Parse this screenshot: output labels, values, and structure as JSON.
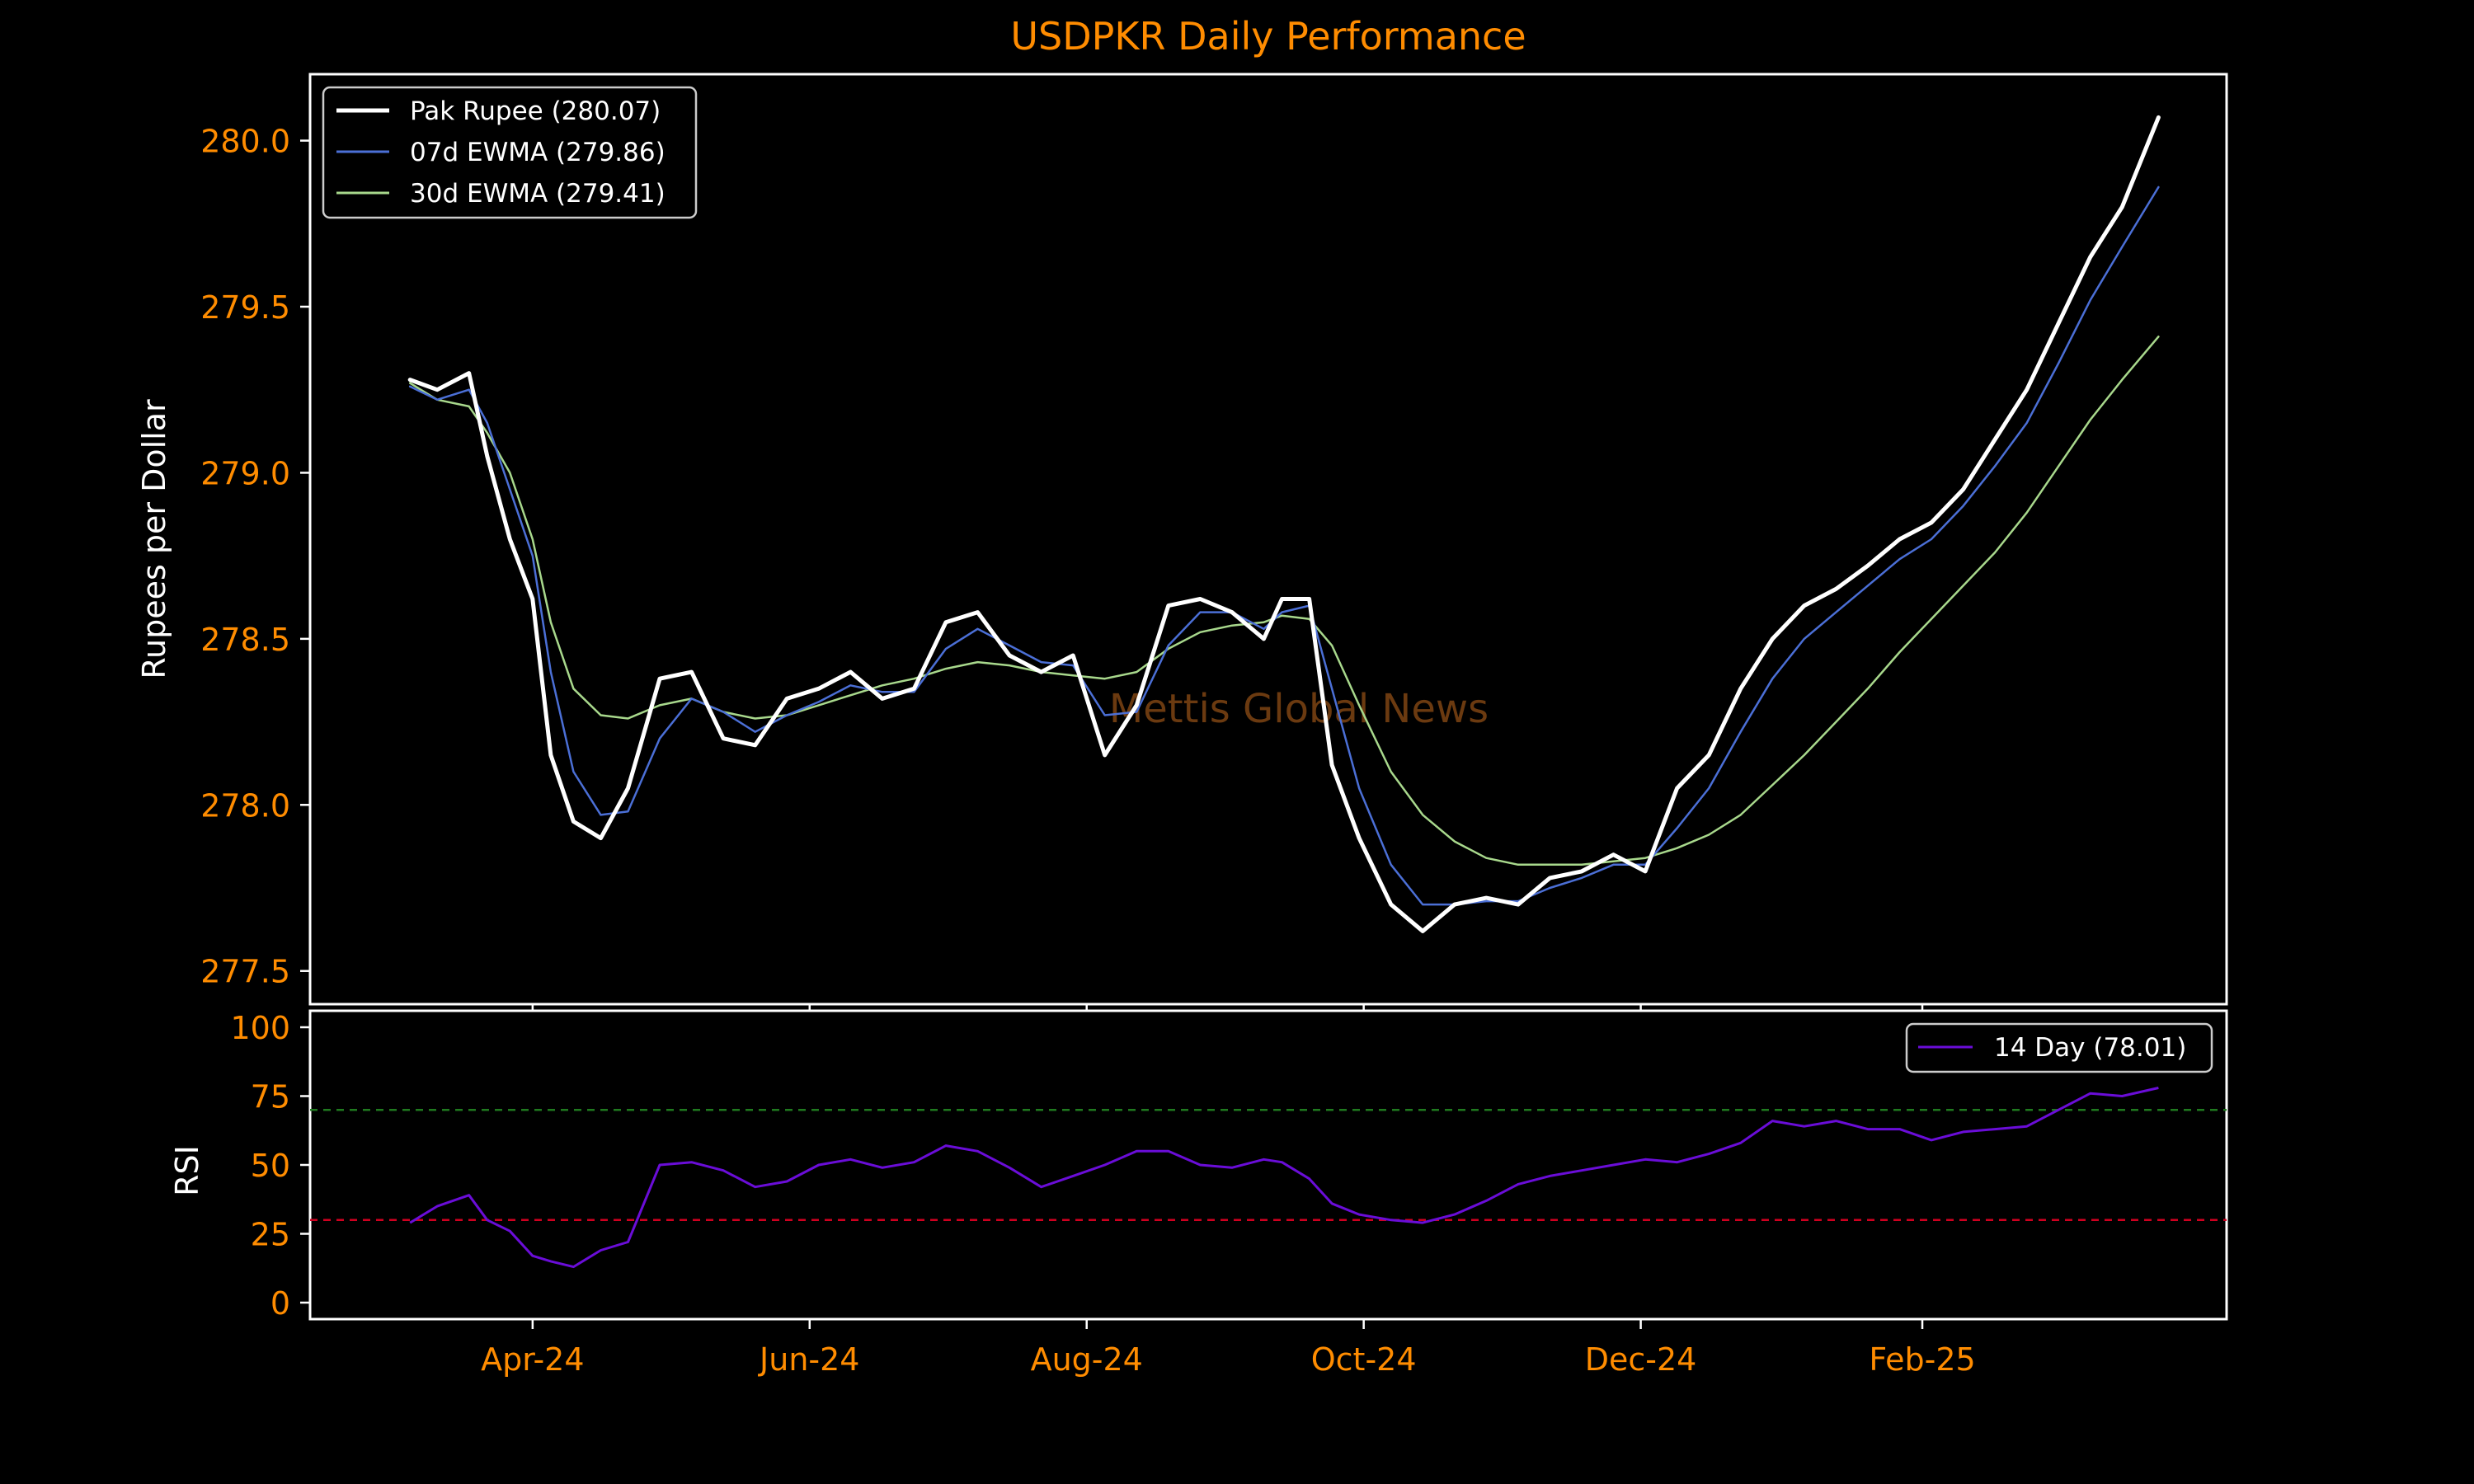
{
  "colors": {
    "background": "#000000",
    "accent": "#ff8c00",
    "text": "#ffffff",
    "frame": "#ffffff",
    "rupee": "#ffffff",
    "ewma7": "#4b6fd6",
    "ewma30": "#a8d88c",
    "rsi": "#6a0dd8",
    "overbought": "#1f7a1f",
    "oversold": "#d00020",
    "watermark": "#6b3a10"
  },
  "chart_data": [
    {
      "type": "line",
      "title": "USDPKR Daily Performance",
      "ylabel": "Rupees per Dollar",
      "ylim": [
        277.4,
        280.2
      ],
      "yticks": [
        "277.5",
        "278.0",
        "278.5",
        "279.0",
        "279.5",
        "280.0"
      ],
      "xticks": [
        "Apr-24",
        "Jun-24",
        "Aug-24",
        "Oct-24",
        "Dec-24",
        "Feb-25"
      ],
      "xtick_dates": [
        "2024-04-01",
        "2024-06-01",
        "2024-08-01",
        "2024-10-01",
        "2024-12-01",
        "2025-02-01"
      ],
      "xlim": [
        "2024-02-12",
        "2025-04-09"
      ],
      "grid": false,
      "legend": "top-left",
      "watermark": "Mettis Global News",
      "series": [
        {
          "name": "Pak Rupee (280.07)",
          "key": "rupee",
          "x": [
            "2024-03-05",
            "2024-03-11",
            "2024-03-18",
            "2024-03-22",
            "2024-03-27",
            "2024-04-01",
            "2024-04-05",
            "2024-04-10",
            "2024-04-16",
            "2024-04-22",
            "2024-04-29",
            "2024-05-06",
            "2024-05-13",
            "2024-05-20",
            "2024-05-27",
            "2024-06-03",
            "2024-06-10",
            "2024-06-17",
            "2024-06-24",
            "2024-07-01",
            "2024-07-08",
            "2024-07-15",
            "2024-07-22",
            "2024-07-29",
            "2024-08-05",
            "2024-08-12",
            "2024-08-19",
            "2024-08-26",
            "2024-09-02",
            "2024-09-09",
            "2024-09-13",
            "2024-09-19",
            "2024-09-24",
            "2024-09-30",
            "2024-10-07",
            "2024-10-14",
            "2024-10-21",
            "2024-10-28",
            "2024-11-04",
            "2024-11-11",
            "2024-11-18",
            "2024-11-25",
            "2024-12-02",
            "2024-12-09",
            "2024-12-16",
            "2024-12-23",
            "2024-12-30",
            "2025-01-06",
            "2025-01-13",
            "2025-01-20",
            "2025-01-27",
            "2025-02-03",
            "2025-02-10",
            "2025-02-17",
            "2025-02-24",
            "2025-03-03",
            "2025-03-10",
            "2025-03-17",
            "2025-03-25"
          ],
          "values": [
            279.28,
            279.25,
            279.3,
            279.05,
            278.8,
            278.62,
            278.15,
            277.95,
            277.9,
            278.05,
            278.38,
            278.4,
            278.2,
            278.18,
            278.32,
            278.35,
            278.4,
            278.32,
            278.35,
            278.55,
            278.58,
            278.45,
            278.4,
            278.45,
            278.15,
            278.3,
            278.6,
            278.62,
            278.58,
            278.5,
            278.62,
            278.62,
            278.12,
            277.9,
            277.7,
            277.62,
            277.7,
            277.72,
            277.7,
            277.78,
            277.8,
            277.85,
            277.8,
            278.05,
            278.15,
            278.35,
            278.5,
            278.6,
            278.65,
            278.72,
            278.8,
            278.85,
            278.95,
            279.1,
            279.25,
            279.45,
            279.65,
            279.8,
            280.07
          ]
        },
        {
          "name": "07d EWMA (279.86)",
          "key": "ewma7",
          "x": [
            "2024-03-05",
            "2024-03-11",
            "2024-03-18",
            "2024-03-22",
            "2024-03-27",
            "2024-04-01",
            "2024-04-05",
            "2024-04-10",
            "2024-04-16",
            "2024-04-22",
            "2024-04-29",
            "2024-05-06",
            "2024-05-13",
            "2024-05-20",
            "2024-05-27",
            "2024-06-03",
            "2024-06-10",
            "2024-06-17",
            "2024-06-24",
            "2024-07-01",
            "2024-07-08",
            "2024-07-15",
            "2024-07-22",
            "2024-07-29",
            "2024-08-05",
            "2024-08-12",
            "2024-08-19",
            "2024-08-26",
            "2024-09-02",
            "2024-09-09",
            "2024-09-13",
            "2024-09-19",
            "2024-09-24",
            "2024-09-30",
            "2024-10-07",
            "2024-10-14",
            "2024-10-21",
            "2024-10-28",
            "2024-11-04",
            "2024-11-11",
            "2024-11-18",
            "2024-11-25",
            "2024-12-02",
            "2024-12-09",
            "2024-12-16",
            "2024-12-23",
            "2024-12-30",
            "2025-01-06",
            "2025-01-13",
            "2025-01-20",
            "2025-01-27",
            "2025-02-03",
            "2025-02-10",
            "2025-02-17",
            "2025-02-24",
            "2025-03-03",
            "2025-03-10",
            "2025-03-17",
            "2025-03-25"
          ],
          "values": [
            279.26,
            279.22,
            279.25,
            279.15,
            278.95,
            278.75,
            278.4,
            278.1,
            277.97,
            277.98,
            278.2,
            278.32,
            278.28,
            278.22,
            278.27,
            278.31,
            278.36,
            278.34,
            278.34,
            278.47,
            278.53,
            278.48,
            278.43,
            278.42,
            278.27,
            278.28,
            278.48,
            278.58,
            278.58,
            278.53,
            278.58,
            278.6,
            278.35,
            278.05,
            277.82,
            277.7,
            277.7,
            277.71,
            277.71,
            277.75,
            277.78,
            277.82,
            277.82,
            277.93,
            278.05,
            278.22,
            278.38,
            278.5,
            278.58,
            278.66,
            278.74,
            278.8,
            278.9,
            279.02,
            279.15,
            279.33,
            279.52,
            279.68,
            279.86
          ]
        },
        {
          "name": "30d EWMA (279.41)",
          "key": "ewma30",
          "x": [
            "2024-03-05",
            "2024-03-11",
            "2024-03-18",
            "2024-03-22",
            "2024-03-27",
            "2024-04-01",
            "2024-04-05",
            "2024-04-10",
            "2024-04-16",
            "2024-04-22",
            "2024-04-29",
            "2024-05-06",
            "2024-05-13",
            "2024-05-20",
            "2024-05-27",
            "2024-06-03",
            "2024-06-10",
            "2024-06-17",
            "2024-06-24",
            "2024-07-01",
            "2024-07-08",
            "2024-07-15",
            "2024-07-22",
            "2024-07-29",
            "2024-08-05",
            "2024-08-12",
            "2024-08-19",
            "2024-08-26",
            "2024-09-02",
            "2024-09-09",
            "2024-09-13",
            "2024-09-19",
            "2024-09-24",
            "2024-09-30",
            "2024-10-07",
            "2024-10-14",
            "2024-10-21",
            "2024-10-28",
            "2024-11-04",
            "2024-11-11",
            "2024-11-18",
            "2024-11-25",
            "2024-12-02",
            "2024-12-09",
            "2024-12-16",
            "2024-12-23",
            "2024-12-30",
            "2025-01-06",
            "2025-01-13",
            "2025-01-20",
            "2025-01-27",
            "2025-02-03",
            "2025-02-10",
            "2025-02-17",
            "2025-02-24",
            "2025-03-03",
            "2025-03-10",
            "2025-03-17",
            "2025-03-25"
          ],
          "values": [
            279.27,
            279.22,
            279.2,
            279.12,
            279.0,
            278.8,
            278.55,
            278.35,
            278.27,
            278.26,
            278.3,
            278.32,
            278.28,
            278.26,
            278.27,
            278.3,
            278.33,
            278.36,
            278.38,
            278.41,
            278.43,
            278.42,
            278.4,
            278.39,
            278.38,
            278.4,
            278.47,
            278.52,
            278.54,
            278.55,
            278.57,
            278.56,
            278.48,
            278.3,
            278.1,
            277.97,
            277.89,
            277.84,
            277.82,
            277.82,
            277.82,
            277.83,
            277.84,
            277.87,
            277.91,
            277.97,
            278.06,
            278.15,
            278.25,
            278.35,
            278.46,
            278.56,
            278.66,
            278.76,
            278.88,
            279.02,
            279.16,
            279.28,
            279.41
          ]
        }
      ]
    },
    {
      "type": "line",
      "ylabel": "RSI",
      "ylim": [
        0,
        100
      ],
      "yticks": [
        "0",
        "25",
        "50",
        "75",
        "100"
      ],
      "reference_lines": [
        70,
        30
      ],
      "legend": "top-right",
      "series": [
        {
          "name": "14 Day (78.01)",
          "key": "rsi",
          "x": [
            "2024-03-05",
            "2024-03-11",
            "2024-03-18",
            "2024-03-22",
            "2024-03-27",
            "2024-04-01",
            "2024-04-05",
            "2024-04-10",
            "2024-04-16",
            "2024-04-22",
            "2024-04-29",
            "2024-05-06",
            "2024-05-13",
            "2024-05-20",
            "2024-05-27",
            "2024-06-03",
            "2024-06-10",
            "2024-06-17",
            "2024-06-24",
            "2024-07-01",
            "2024-07-08",
            "2024-07-15",
            "2024-07-22",
            "2024-07-29",
            "2024-08-05",
            "2024-08-12",
            "2024-08-19",
            "2024-08-26",
            "2024-09-02",
            "2024-09-09",
            "2024-09-13",
            "2024-09-19",
            "2024-09-24",
            "2024-09-30",
            "2024-10-07",
            "2024-10-14",
            "2024-10-21",
            "2024-10-28",
            "2024-11-04",
            "2024-11-11",
            "2024-11-18",
            "2024-11-25",
            "2024-12-02",
            "2024-12-09",
            "2024-12-16",
            "2024-12-23",
            "2024-12-30",
            "2025-01-06",
            "2025-01-13",
            "2025-01-20",
            "2025-01-27",
            "2025-02-03",
            "2025-02-10",
            "2025-02-17",
            "2025-02-24",
            "2025-03-03",
            "2025-03-10",
            "2025-03-17",
            "2025-03-25"
          ],
          "values": [
            29,
            35,
            39,
            30,
            26,
            17,
            15,
            13,
            19,
            22,
            50,
            51,
            48,
            42,
            44,
            50,
            52,
            49,
            51,
            57,
            55,
            49,
            42,
            46,
            50,
            55,
            55,
            50,
            49,
            52,
            51,
            45,
            36,
            32,
            30,
            29,
            32,
            37,
            43,
            46,
            48,
            50,
            52,
            51,
            54,
            58,
            66,
            64,
            66,
            63,
            63,
            59,
            62,
            63,
            64,
            70,
            76,
            75,
            78
          ]
        }
      ]
    }
  ]
}
